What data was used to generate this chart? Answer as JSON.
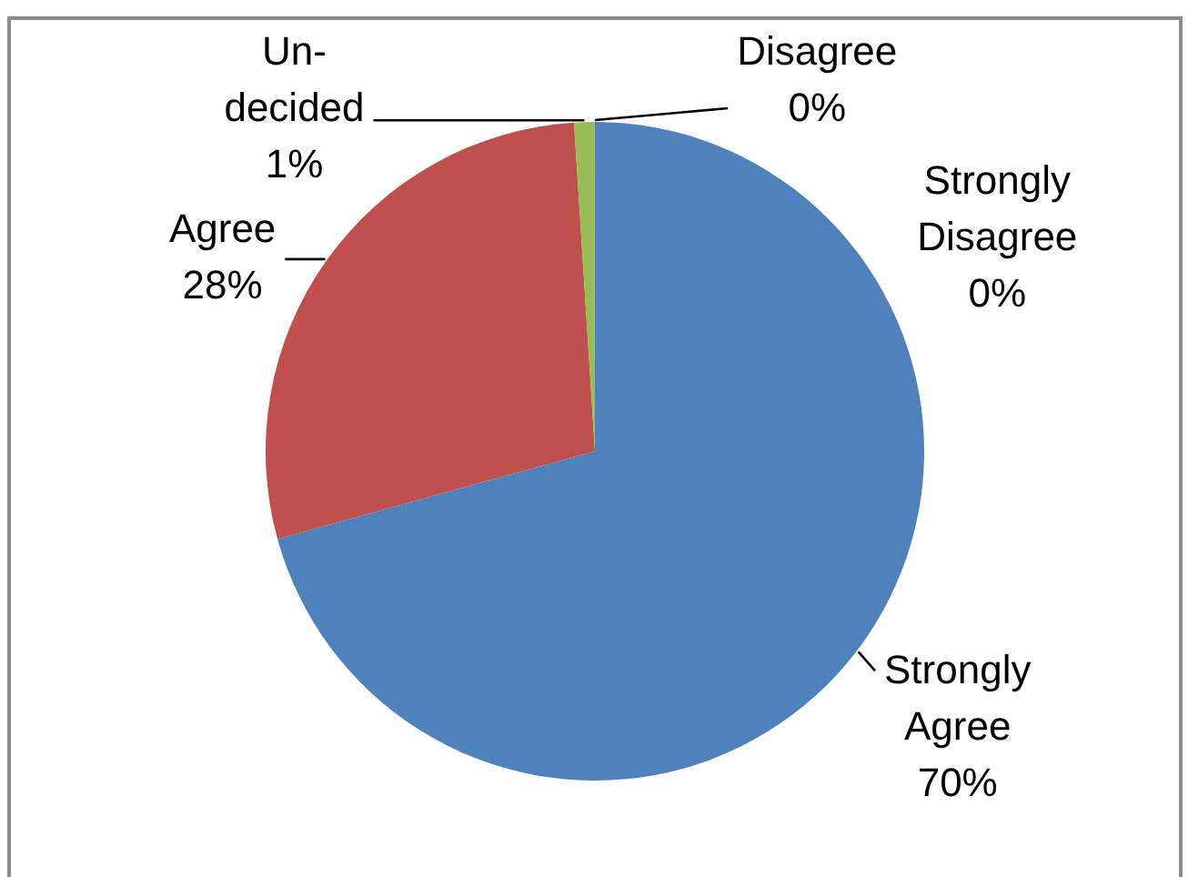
{
  "chart_data": {
    "type": "pie",
    "categories": [
      "Strongly Agree",
      "Agree",
      "Un-decided",
      "Disagree",
      "Strongly Disagree"
    ],
    "values": [
      70,
      28,
      1,
      0,
      0
    ],
    "colors": [
      "#4f81bd",
      "#c0504d",
      "#9bbb59",
      "#8064a2",
      "#4bacc6"
    ],
    "value_labels": [
      "70%",
      "28%",
      "1%",
      "0%",
      "0%"
    ]
  }
}
